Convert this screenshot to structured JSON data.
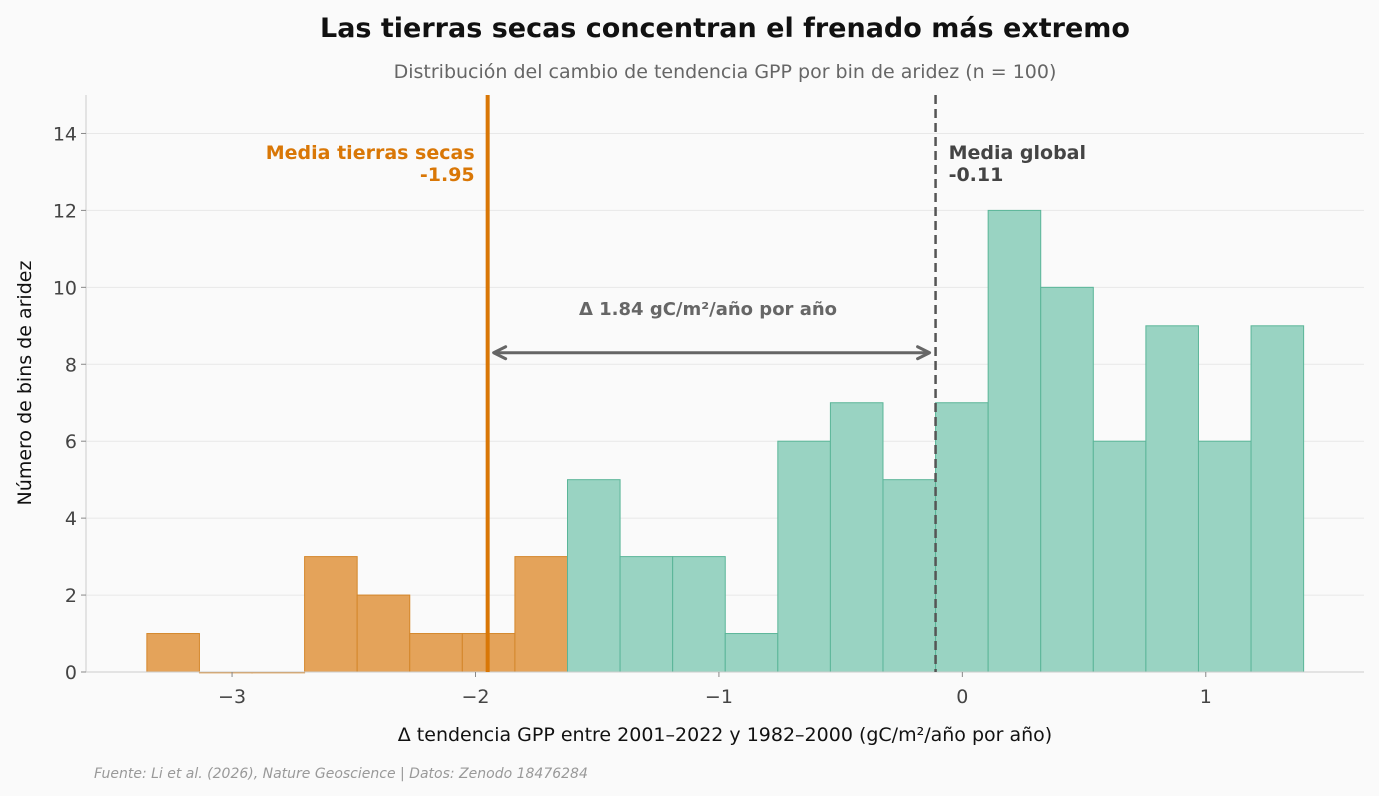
{
  "chart_data": {
    "type": "bar",
    "title": "Las tierras secas concentran el frenado más extremo",
    "subtitle": "Distribución del cambio de tendencia GPP por bin de aridez (n = 100)",
    "xlabel": "Δ tendencia GPP entre 2001–2022 y 1982–2000 (gC/m²/año por año)",
    "ylabel": "Número de bins de aridez",
    "xlim": [
      -3.6,
      1.65
    ],
    "ylim": [
      0,
      15
    ],
    "xticks": [
      -3,
      -2,
      -1,
      0,
      1
    ],
    "xtick_labels": [
      "−3",
      "−2",
      "−1",
      "0",
      "1"
    ],
    "yticks": [
      0,
      2,
      4,
      6,
      8,
      10,
      12,
      14
    ],
    "grid": "horizontal",
    "bins": [
      {
        "x0": -3.35,
        "x1": -3.134,
        "count": 1,
        "group": "dry"
      },
      {
        "x0": -3.134,
        "x1": -2.918,
        "count": 0,
        "group": "dry"
      },
      {
        "x0": -2.918,
        "x1": -2.702,
        "count": 0,
        "group": "dry"
      },
      {
        "x0": -2.702,
        "x1": -2.486,
        "count": 3,
        "group": "dry"
      },
      {
        "x0": -2.486,
        "x1": -2.27,
        "count": 2,
        "group": "dry"
      },
      {
        "x0": -2.27,
        "x1": -2.054,
        "count": 1,
        "group": "dry"
      },
      {
        "x0": -2.054,
        "x1": -1.838,
        "count": 1,
        "group": "dry"
      },
      {
        "x0": -1.838,
        "x1": -1.622,
        "count": 3,
        "group": "dry"
      },
      {
        "x0": -1.622,
        "x1": -1.406,
        "count": 5,
        "group": "other"
      },
      {
        "x0": -1.406,
        "x1": -1.19,
        "count": 3,
        "group": "other"
      },
      {
        "x0": -1.19,
        "x1": -0.974,
        "count": 3,
        "group": "other"
      },
      {
        "x0": -0.974,
        "x1": -0.758,
        "count": 1,
        "group": "other"
      },
      {
        "x0": -0.758,
        "x1": -0.542,
        "count": 6,
        "group": "other"
      },
      {
        "x0": -0.542,
        "x1": -0.326,
        "count": 7,
        "group": "other"
      },
      {
        "x0": -0.326,
        "x1": -0.11,
        "count": 5,
        "group": "other"
      },
      {
        "x0": -0.11,
        "x1": 0.106,
        "count": 7,
        "group": "other"
      },
      {
        "x0": 0.106,
        "x1": 0.322,
        "count": 12,
        "group": "other"
      },
      {
        "x0": 0.322,
        "x1": 0.538,
        "count": 10,
        "group": "other"
      },
      {
        "x0": 0.538,
        "x1": 0.754,
        "count": 6,
        "group": "other"
      },
      {
        "x0": 0.754,
        "x1": 0.97,
        "count": 9,
        "group": "other"
      },
      {
        "x0": 0.97,
        "x1": 1.186,
        "count": 6,
        "group": "other"
      },
      {
        "x0": 1.186,
        "x1": 1.402,
        "count": 9,
        "group": "other"
      }
    ],
    "colors": {
      "dry_fill": "#e4a35a",
      "dry_edge": "#d4862a",
      "other_fill": "#99d3c2",
      "other_edge": "#5ab598",
      "dry_line": "#d97706",
      "global_line": "#555555",
      "arrow": "#666666"
    },
    "annotations": {
      "dry_mean": {
        "x": -1.95,
        "label": "Media tierras secas",
        "value_label": "-1.95"
      },
      "global_mean": {
        "x": -0.11,
        "label": "Media global",
        "value_label": "-0.11"
      },
      "delta": {
        "label": "Δ 1.84 gC/m²/año por año",
        "y": 8.3,
        "from": -1.95,
        "to": -0.11
      }
    },
    "source": "Fuente: Li et al. (2026), Nature Geoscience | Datos: Zenodo 18476284"
  }
}
